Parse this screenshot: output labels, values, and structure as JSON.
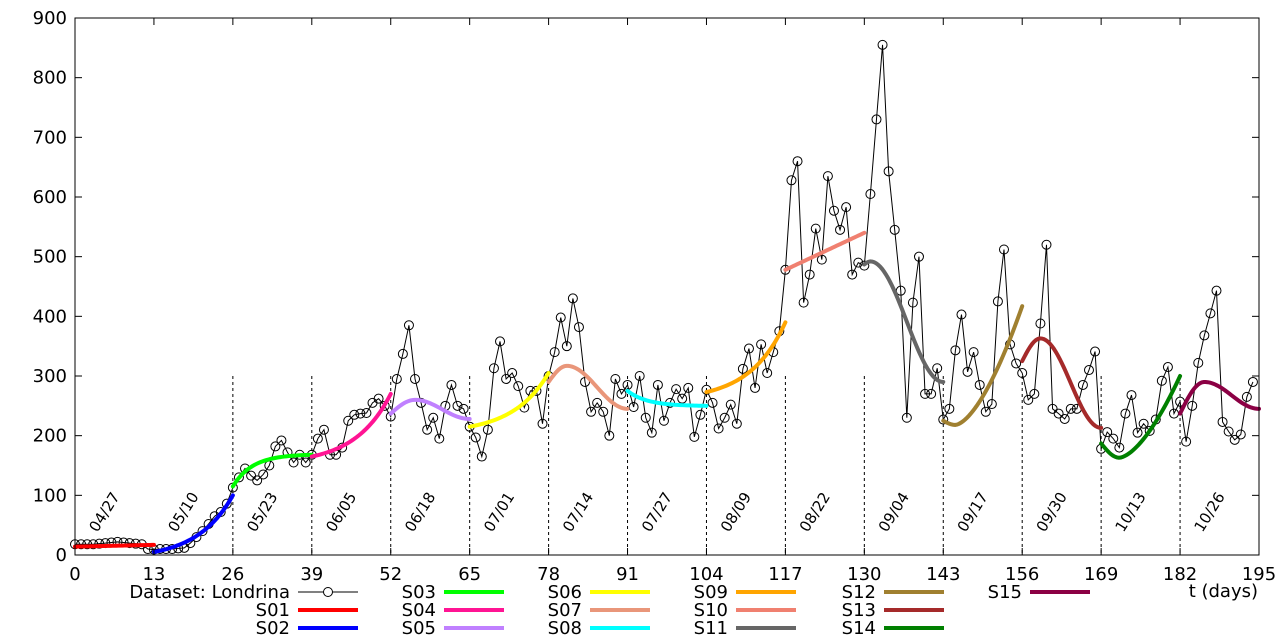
{
  "chart_data": {
    "type": "line",
    "xlabel": "t (days)",
    "xlim": [
      0,
      195
    ],
    "ylim": [
      0,
      900
    ],
    "grid": false,
    "legend_position": "bottom",
    "x_ticks": [
      0,
      13,
      26,
      39,
      52,
      65,
      78,
      91,
      104,
      117,
      130,
      143,
      156,
      169,
      182,
      195
    ],
    "y_ticks": [
      0,
      100,
      200,
      300,
      400,
      500,
      600,
      700,
      800,
      900
    ],
    "segment_dates": [
      {
        "t": 4,
        "label": "04/27"
      },
      {
        "t": 17,
        "label": "05/10"
      },
      {
        "t": 30,
        "label": "05/23"
      },
      {
        "t": 43,
        "label": "06/05"
      },
      {
        "t": 56,
        "label": "06/18"
      },
      {
        "t": 69,
        "label": "07/01"
      },
      {
        "t": 82,
        "label": "07/14"
      },
      {
        "t": 95,
        "label": "07/27"
      },
      {
        "t": 108,
        "label": "08/09"
      },
      {
        "t": 121,
        "label": "08/22"
      },
      {
        "t": 134,
        "label": "09/04"
      },
      {
        "t": 147,
        "label": "09/17"
      },
      {
        "t": 160,
        "label": "09/30"
      },
      {
        "t": 173,
        "label": "10/13"
      },
      {
        "t": 186,
        "label": "10/26"
      }
    ],
    "dashed_lines_t": [
      26,
      39,
      52,
      65,
      78,
      91,
      104,
      117,
      130,
      143,
      156,
      169,
      182
    ],
    "dataset": {
      "name": "Dataset: Londrina",
      "color": "#000000",
      "values": [
        18,
        18,
        18,
        18,
        19,
        20,
        21,
        22,
        21,
        20,
        19,
        18,
        10,
        9,
        10,
        10,
        10,
        11,
        12,
        20,
        30,
        40,
        52,
        65,
        72,
        86,
        113,
        130,
        145,
        133,
        125,
        135,
        150,
        182,
        192,
        172,
        155,
        168,
        155,
        168,
        195,
        210,
        168,
        168,
        180,
        225,
        235,
        237,
        238,
        255,
        262,
        250,
        232,
        295,
        337,
        385,
        295,
        255,
        210,
        230,
        195,
        250,
        285,
        250,
        245,
        215,
        197,
        165,
        210,
        313,
        358,
        295,
        305,
        283,
        247,
        275,
        275,
        220,
        300,
        340,
        398,
        350,
        430,
        382,
        290,
        240,
        255,
        240,
        200,
        295,
        270,
        285,
        248,
        300,
        230,
        205,
        285,
        225,
        255,
        278,
        262,
        280,
        198,
        235,
        277,
        255,
        212,
        230,
        252,
        220,
        312,
        346,
        280,
        353,
        305,
        340,
        375,
        478,
        628,
        660,
        423,
        470,
        547,
        495,
        635,
        577,
        545,
        583,
        470,
        490,
        485,
        605,
        730,
        855,
        643,
        545,
        443,
        230,
        423,
        500,
        270,
        270,
        313,
        227,
        245,
        343,
        403,
        307,
        340,
        285,
        240,
        253,
        425,
        512,
        353,
        321,
        305,
        260,
        270,
        388,
        520,
        245,
        237,
        228,
        245,
        245,
        285,
        310,
        341,
        178,
        206,
        195,
        180,
        237,
        268,
        205,
        220,
        208,
        227,
        292,
        315,
        237,
        257,
        190,
        250,
        322,
        368,
        405,
        443,
        223,
        207,
        193,
        202,
        265,
        290
      ]
    },
    "series": [
      {
        "name": "S01",
        "color": "#ff0000",
        "t0": 0,
        "t1": 13,
        "y0": 14,
        "y1": 17,
        "curve": "flat"
      },
      {
        "name": "S02",
        "color": "#0000ff",
        "t0": 13,
        "t1": 26,
        "y0": 5,
        "y1": 100,
        "curve": "exp"
      },
      {
        "name": "S03",
        "color": "#00ff00",
        "t0": 26,
        "t1": 39,
        "y0": 115,
        "y1": 168,
        "curve": "log"
      },
      {
        "name": "S04",
        "color": "#ff1493",
        "t0": 39,
        "t1": 52,
        "y0": 165,
        "y1": 270,
        "curve": "exp"
      },
      {
        "name": "S05",
        "color": "#c080ff",
        "t0": 52,
        "t1": 65,
        "y0": 237,
        "y1": 228,
        "peak": 260,
        "peak_t": 56
      },
      {
        "name": "S06",
        "color": "#ffff00",
        "t0": 65,
        "t1": 78,
        "y0": 215,
        "y1": 305,
        "curve": "exp"
      },
      {
        "name": "S07",
        "color": "#e9967a",
        "t0": 78,
        "t1": 91,
        "y0": 290,
        "y1": 245,
        "peak": 317,
        "peak_t": 81
      },
      {
        "name": "S08",
        "color": "#00ffff",
        "t0": 91,
        "t1": 104,
        "y0": 275,
        "y1": 250,
        "curve": "log"
      },
      {
        "name": "S09",
        "color": "#ffa500",
        "t0": 104,
        "t1": 117,
        "y0": 273,
        "y1": 390,
        "curve": "exp"
      },
      {
        "name": "S10",
        "color": "#f08070",
        "t0": 117,
        "t1": 130,
        "y0": 478,
        "y1": 540,
        "curve": "flat"
      },
      {
        "name": "S11",
        "color": "#666666",
        "t0": 130,
        "t1": 143,
        "y0": 487,
        "y1": 290,
        "peak": 492,
        "peak_t": 131
      },
      {
        "name": "S12",
        "color": "#a08030",
        "t0": 143,
        "t1": 156,
        "y0": 225,
        "y1": 417,
        "trough": 218,
        "trough_t": 145
      },
      {
        "name": "S13",
        "color": "#a52a2a",
        "t0": 156,
        "t1": 169,
        "y0": 325,
        "y1": 213,
        "peak": 363,
        "peak_t": 159
      },
      {
        "name": "S14",
        "color": "#008000",
        "t0": 169,
        "t1": 182,
        "y0": 187,
        "y1": 300,
        "trough": 163,
        "trough_t": 172
      },
      {
        "name": "S15",
        "color": "#8b0044",
        "t0": 182,
        "t1": 195,
        "y0": 237,
        "y1": 245,
        "peak": 290,
        "peak_t": 186
      }
    ]
  }
}
